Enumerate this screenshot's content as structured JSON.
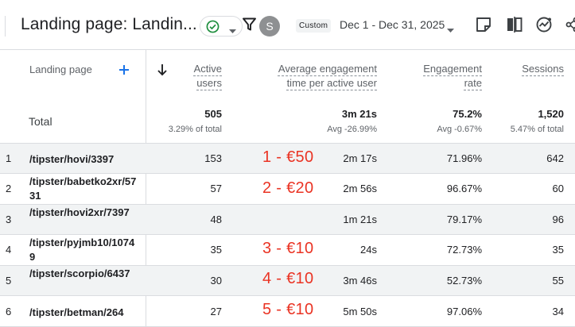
{
  "toolbar": {
    "title": "Landing page: Landin...",
    "avatar_letter": "S",
    "date_badge": "Custom",
    "date_range": "Dec 1 - Dec 31, 2025"
  },
  "table": {
    "headers": {
      "landing_page": "Landing page",
      "active_users_line1": "Active",
      "active_users_line2": "users",
      "avg_engagement_line1": "Average engagement",
      "avg_engagement_line2": "time per active user",
      "engagement_rate_line1": "Engagement",
      "engagement_rate_line2": "rate",
      "sessions": "Sessions"
    },
    "total": {
      "label": "Total",
      "active_users": "505",
      "active_users_sub": "3.29% of total",
      "avg_engagement": "3m 21s",
      "avg_engagement_sub": "Avg -26.99%",
      "engagement_rate": "75.2%",
      "engagement_rate_sub": "Avg -0.67%",
      "sessions": "1,520",
      "sessions_sub": "5.47% of total"
    },
    "rows": [
      {
        "index": "1",
        "page": "/tipster/hovi/3397",
        "active_users": "153",
        "avg_engagement": "2m 17s",
        "engagement_rate": "71.96%",
        "sessions": "642",
        "annotation": "1 - €50"
      },
      {
        "index": "2",
        "page": "/tipster/babetko2xr/5731",
        "active_users": "57",
        "avg_engagement": "2m 56s",
        "engagement_rate": "96.67%",
        "sessions": "60",
        "annotation": "2 - €20"
      },
      {
        "index": "3",
        "page": "/tipster/hovi2xr/7397",
        "active_users": "48",
        "avg_engagement": "1m 21s",
        "engagement_rate": "79.17%",
        "sessions": "96",
        "annotation": ""
      },
      {
        "index": "4",
        "page": "/tipster/pyjmb10/10749",
        "active_users": "35",
        "avg_engagement": "24s",
        "engagement_rate": "72.73%",
        "sessions": "35",
        "annotation": "3 - €10"
      },
      {
        "index": "5",
        "page": "/tipster/scorpio/6437",
        "active_users": "30",
        "avg_engagement": "3m 46s",
        "engagement_rate": "52.73%",
        "sessions": "55",
        "annotation": "4 - €10"
      },
      {
        "index": "6",
        "page": "/tipster/betman/264",
        "active_users": "27",
        "avg_engagement": "5m 50s",
        "engagement_rate": "97.06%",
        "sessions": "34",
        "annotation": "5 - €10"
      }
    ]
  },
  "colors": {
    "annotation": "#ea3323",
    "status_ok": "#1e8e3e",
    "row_shade": "#f1f3f4"
  },
  "icons": [
    "check-circle-icon",
    "chevron-down-icon",
    "filter-icon",
    "note-icon",
    "compare-icon",
    "insights-icon",
    "share-icon",
    "add-icon",
    "sort-arrow-down-icon"
  ]
}
